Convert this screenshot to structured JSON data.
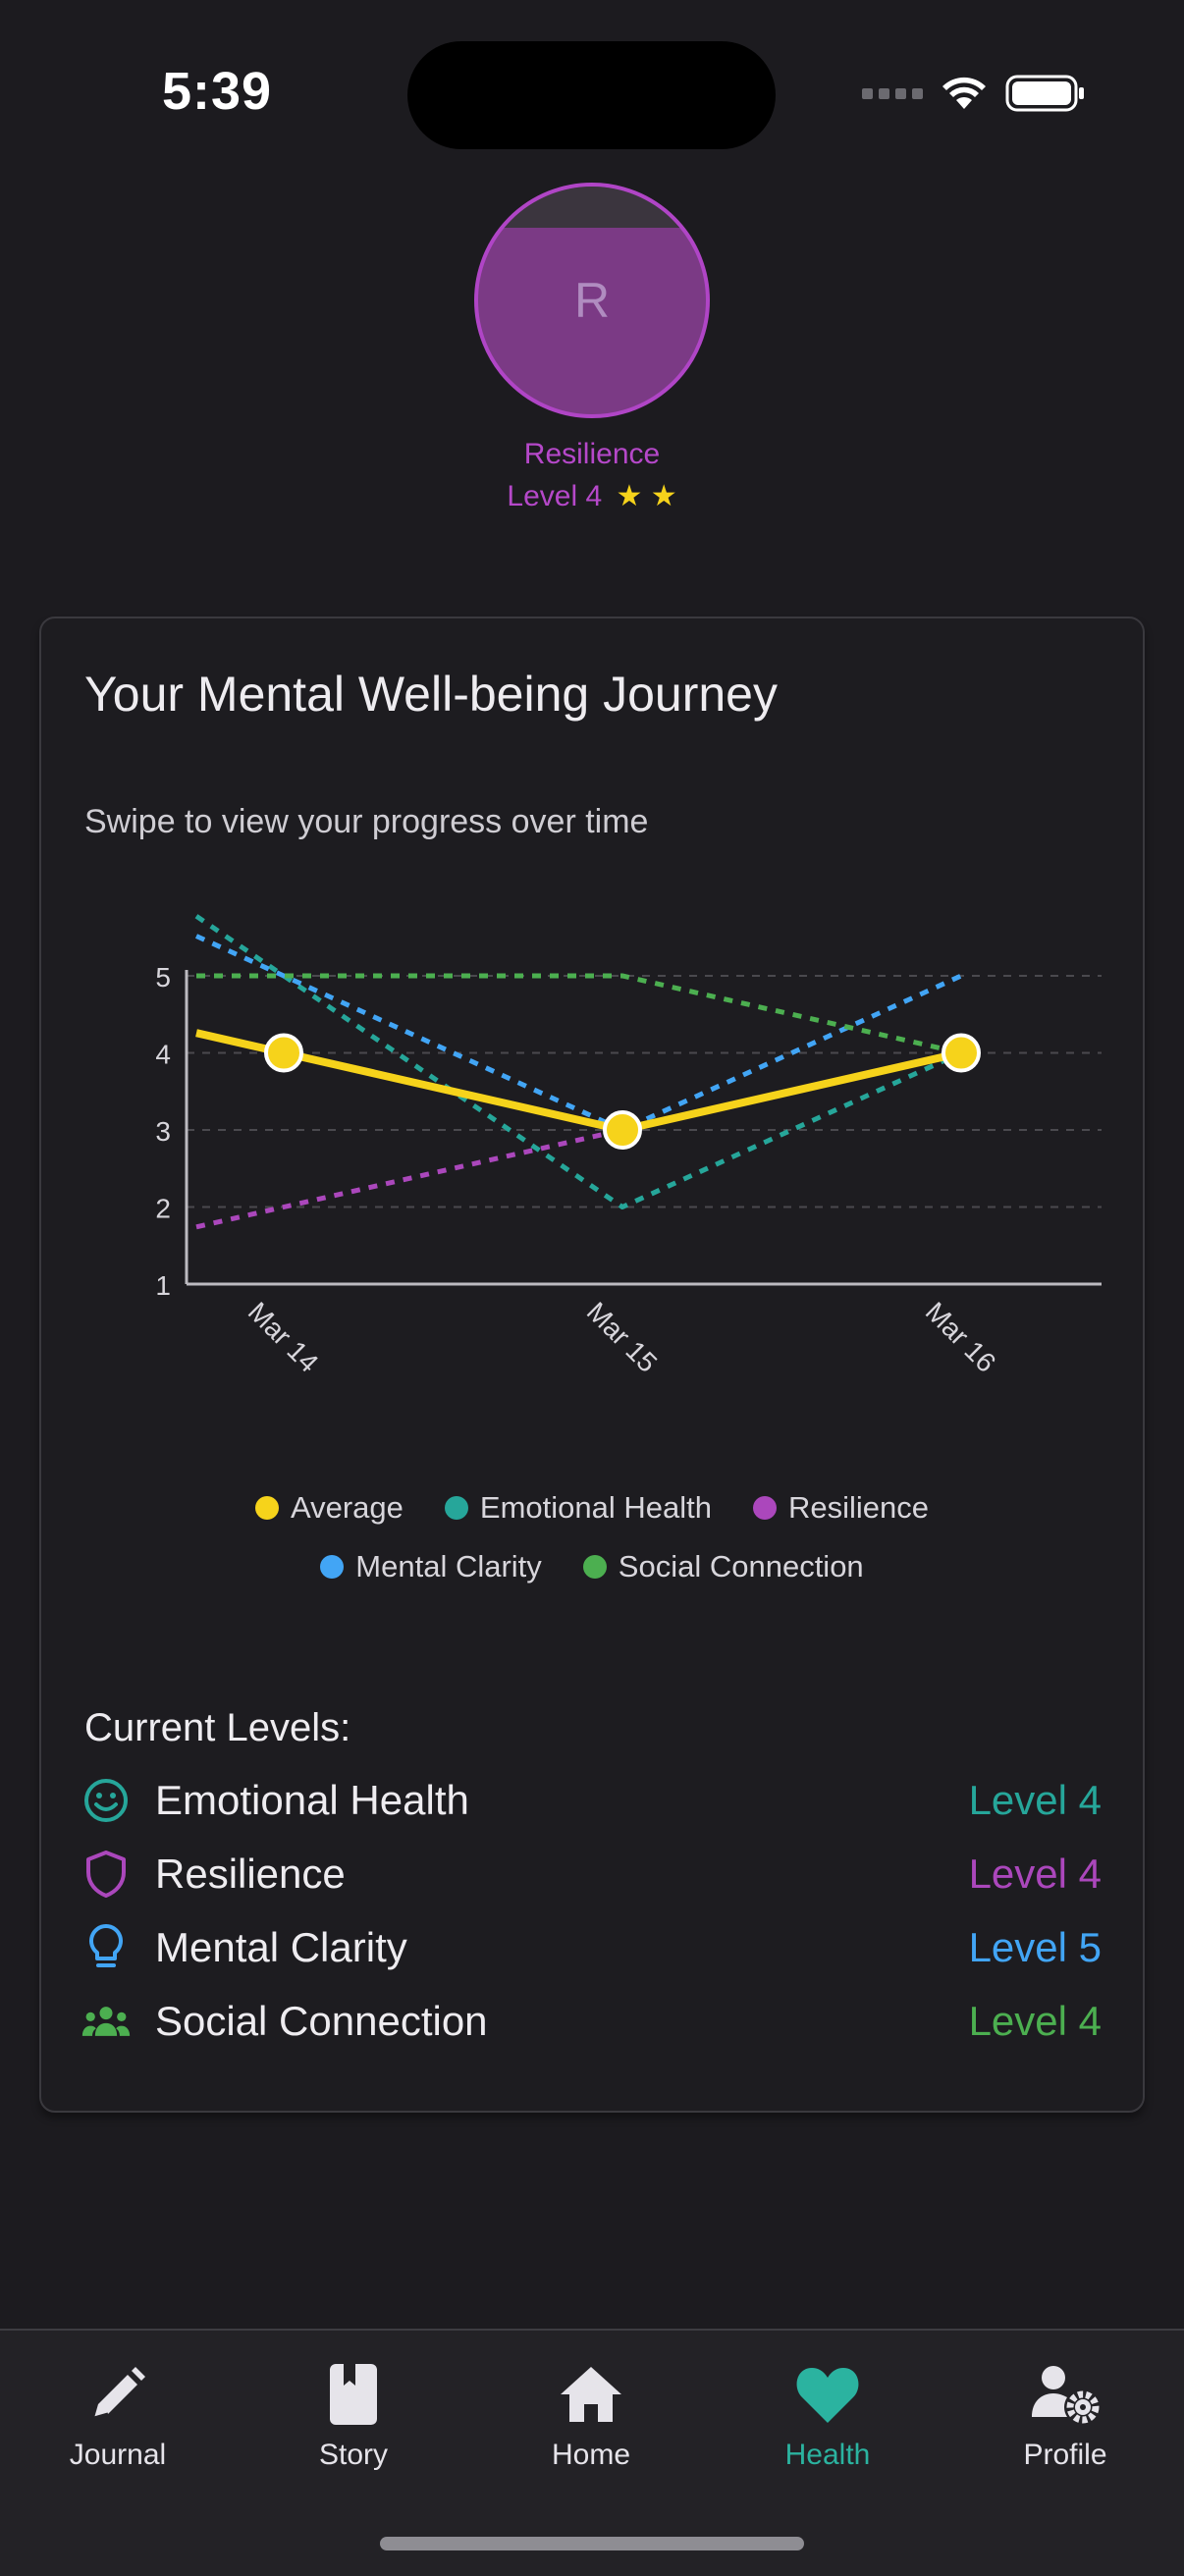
{
  "status": {
    "time": "5:39"
  },
  "profile": {
    "initial": "R",
    "trait": "Resilience",
    "level": "Level 4",
    "stars": "★ ★"
  },
  "card": {
    "title": "Your Mental Well-being Journey",
    "subtitle": "Swipe to view your progress over time"
  },
  "chart_data": {
    "type": "line",
    "categories": [
      "Mar 14",
      "Mar 15",
      "Mar 16"
    ],
    "ylim": [
      1,
      5
    ],
    "yticks": [
      1,
      2,
      3,
      4,
      5
    ],
    "grid": true,
    "legend_position": "bottom",
    "series": [
      {
        "name": "Average",
        "values": [
          4,
          3,
          4
        ],
        "color": "#f6d31b",
        "style": "solid"
      },
      {
        "name": "Emotional Health",
        "values": [
          5,
          2,
          4
        ],
        "color": "#26a69a",
        "style": "dashed"
      },
      {
        "name": "Resilience",
        "values": [
          2,
          3,
          4
        ],
        "color": "#ab47bc",
        "style": "dashed"
      },
      {
        "name": "Mental Clarity",
        "values": [
          5,
          3,
          5
        ],
        "color": "#42a5f5",
        "style": "dashed"
      },
      {
        "name": "Social Connection",
        "values": [
          5,
          5,
          4
        ],
        "color": "#4caf50",
        "style": "dashed"
      }
    ]
  },
  "levels": {
    "title": "Current Levels:",
    "items": [
      {
        "label": "Emotional Health",
        "value": "Level 4",
        "color": "#26a69a",
        "icon": "smiley-icon"
      },
      {
        "label": "Resilience",
        "value": "Level 4",
        "color": "#ab47bc",
        "icon": "shield-icon"
      },
      {
        "label": "Mental Clarity",
        "value": "Level 5",
        "color": "#42a5f5",
        "icon": "lightbulb-icon"
      },
      {
        "label": "Social Connection",
        "value": "Level 4",
        "color": "#4caf50",
        "icon": "group-icon"
      }
    ]
  },
  "nav": {
    "items": [
      {
        "label": "Journal",
        "icon": "pencil-icon"
      },
      {
        "label": "Story",
        "icon": "book-icon"
      },
      {
        "label": "Home",
        "icon": "house-icon"
      },
      {
        "label": "Health",
        "icon": "heart-icon",
        "active": true
      },
      {
        "label": "Profile",
        "icon": "user-gear-icon"
      }
    ],
    "active_color": "#2bb3a0"
  }
}
